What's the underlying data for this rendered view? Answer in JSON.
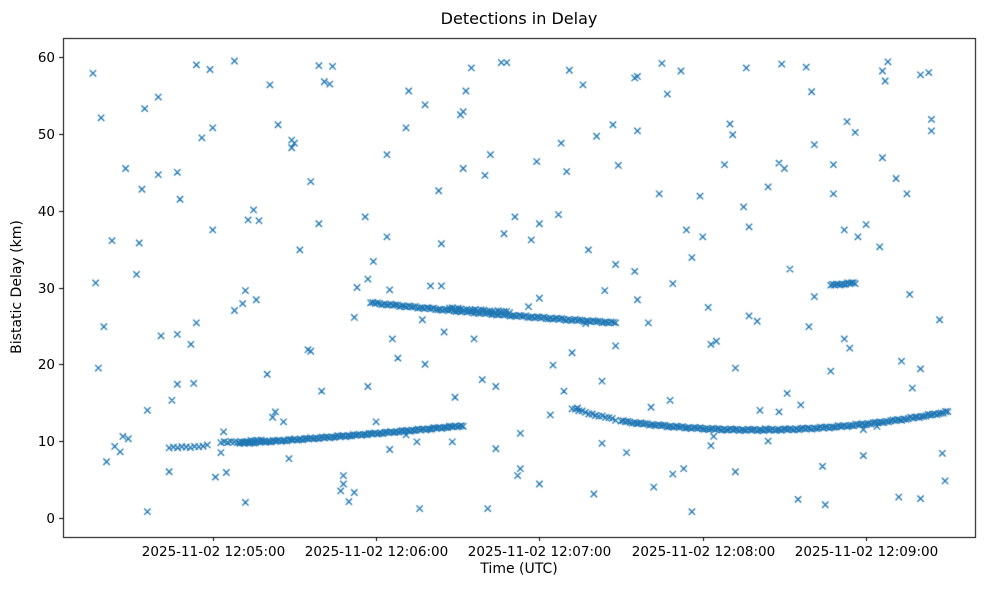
{
  "chart_data": {
    "type": "scatter",
    "title": "Detections in Delay",
    "xlabel": "Time (UTC)",
    "ylabel": "Bistatic Delay (km)",
    "marker": "x",
    "marker_color": "#1f77b4",
    "x_unit": "seconds after 2025-11-02 12:04:00 UTC",
    "xlim": [
      5,
      340
    ],
    "ylim": [
      -2.5,
      62.5
    ],
    "grid": false,
    "x_ticks": [
      {
        "t": 60,
        "label": "2025-11-02 12:05:00"
      },
      {
        "t": 120,
        "label": "2025-11-02 12:06:00"
      },
      {
        "t": 180,
        "label": "2025-11-02 12:07:00"
      },
      {
        "t": 240,
        "label": "2025-11-02 12:08:00"
      },
      {
        "t": 300,
        "label": "2025-11-02 12:09:00"
      }
    ],
    "y_ticks": [
      0,
      10,
      20,
      30,
      40,
      50,
      60
    ],
    "background_points": [
      16,
      57.9,
      20,
      24.9,
      24,
      9.3,
      28,
      45.5,
      32,
      31.7,
      36,
      14.0,
      40,
      54.8,
      44,
      6.0,
      48,
      41.5,
      52,
      22.6,
      56,
      49.5,
      60,
      37.5,
      64,
      11.2,
      68,
      59.5,
      72,
      2.0,
      76,
      28.4,
      80,
      18.7,
      84,
      51.2,
      88,
      7.7,
      92,
      34.9,
      96,
      43.8,
      100,
      16.5,
      104,
      58.8,
      108,
      4.4,
      112,
      26.1,
      116,
      39.2,
      120,
      12.5,
      124,
      47.3,
      128,
      20.8,
      132,
      55.6,
      136,
      1.2,
      140,
      30.2,
      144,
      35.7,
      148,
      9.9,
      152,
      52.9,
      156,
      23.3,
      160,
      44.6,
      164,
      17.1,
      168,
      59.3,
      172,
      5.5,
      176,
      27.5,
      180,
      38.3,
      184,
      13.4,
      188,
      48.8,
      192,
      21.5,
      196,
      56.4,
      200,
      3.1,
      204,
      29.6,
      208,
      33.0,
      212,
      8.5,
      216,
      50.4,
      220,
      25.4,
      224,
      42.2,
      228,
      15.3,
      232,
      58.2,
      236,
      0.8,
      240,
      36.6,
      244,
      10.6,
      248,
      46.0,
      252,
      19.5,
      256,
      58.6,
      260,
      25.6,
      264,
      10.0,
      268,
      46.2,
      272,
      32.4,
      276,
      14.7,
      280,
      55.5,
      284,
      6.7,
      288,
      42.2,
      292,
      23.3,
      296,
      50.2,
      300,
      38.2,
      304,
      11.9,
      308,
      59.4,
      312,
      2.7,
      316,
      29.1,
      320,
      19.4,
      324,
      51.9,
      328,
      8.4,
      18,
      19.5,
      27,
      10.6,
      36,
      0.8,
      45,
      15.3,
      54,
      25.4,
      63,
      8.5,
      72,
      29.6,
      81,
      56.4,
      90,
      48.8,
      99,
      38.3,
      108,
      5.5,
      117,
      17.1,
      126,
      23.3,
      135,
      9.9,
      144,
      30.2,
      153,
      55.6,
      162,
      47.3,
      171,
      39.2,
      180,
      4.4,
      189,
      16.5,
      198,
      34.9,
      207,
      51.2,
      216,
      28.4,
      225,
      59.2,
      234,
      37.5,
      243,
      22.6,
      252,
      6.0,
      261,
      14.0,
      270,
      45.5,
      279,
      24.9,
      288,
      46.0,
      297,
      36.6,
      306,
      58.2,
      315,
      42.2,
      324,
      50.4,
      21,
      7.3,
      34,
      42.8,
      47,
      23.9,
      60,
      50.8,
      73,
      38.8,
      86,
      12.5,
      99,
      58.9,
      112,
      3.3,
      125,
      29.7,
      138,
      20.0,
      151,
      52.5,
      164,
      9.0,
      177,
      36.2,
      190,
      45.1,
      203,
      17.8,
      216,
      57.5,
      229,
      5.7,
      242,
      27.4,
      255,
      40.5,
      268,
      13.8,
      281,
      48.6,
      294,
      22.1,
      307,
      56.9,
      320,
      2.5,
      17,
      30.6,
      23,
      36.1,
      29,
      10.3,
      35,
      53.3,
      41,
      23.7,
      47,
      45.0,
      53,
      17.5,
      59,
      58.4,
      65,
      5.9,
      71,
      27.9,
      77,
      38.7,
      83,
      13.8,
      89,
      49.2,
      95,
      21.9,
      101,
      56.8,
      107,
      3.5,
      113,
      30.0,
      119,
      33.4,
      125,
      8.9,
      131,
      50.8,
      137,
      25.8,
      143,
      42.6,
      149,
      15.7,
      155,
      58.6,
      161,
      1.2,
      167,
      37.0,
      173,
      11.0,
      179,
      46.4,
      185,
      19.9,
      191,
      58.3,
      197,
      25.3,
      203,
      9.7,
      209,
      45.9,
      215,
      32.1,
      221,
      14.4,
      227,
      55.2,
      233,
      6.4,
      239,
      41.9,
      245,
      23.0,
      251,
      49.9,
      257,
      37.9,
      263,
      11.6,
      269,
      59.1,
      275,
      2.4,
      281,
      28.8,
      287,
      19.1,
      293,
      51.6,
      299,
      8.1,
      305,
      35.3,
      311,
      44.2,
      317,
      16.9,
      323,
      58.0,
      329,
      4.8,
      19,
      52.1,
      26,
      8.6,
      33,
      35.8,
      40,
      44.7,
      47,
      17.4,
      54,
      59.0,
      61,
      5.3,
      68,
      27.0,
      75,
      40.1,
      82,
      13.1,
      89,
      48.2,
      96,
      21.7,
      103,
      56.5,
      110,
      2.1,
      117,
      31.1,
      124,
      36.6,
      131,
      10.8,
      138,
      53.8,
      145,
      24.2,
      152,
      45.5,
      159,
      18.0,
      166,
      59.3,
      173,
      6.4,
      180,
      28.6,
      187,
      39.5,
      194,
      14.3,
      201,
      49.7,
      208,
      22.4,
      215,
      57.3,
      222,
      4.0,
      229,
      30.5,
      236,
      33.9,
      243,
      9.4,
      250,
      51.3,
      257,
      26.3,
      264,
      43.1,
      271,
      16.2,
      278,
      58.7,
      285,
      1.7,
      292,
      37.5,
      299,
      11.5,
      306,
      46.9,
      313,
      20.4,
      320,
      57.7,
      327,
      25.8
    ],
    "tracks": [
      {
        "name": "low-early-cluster",
        "t0": 44,
        "t1": 58,
        "y": [
          9.1,
          9.2,
          9.4
        ],
        "n": 10
      },
      {
        "name": "low-rising-lead",
        "t0": 63,
        "t1": 79,
        "y": [
          9.8,
          9.9,
          10.1
        ],
        "n": 14
      },
      {
        "name": "low-rising-track",
        "t0": 70,
        "t1": 152,
        "y": [
          9.7,
          10.6,
          12.0
        ],
        "n": 115
      },
      {
        "name": "mid-descending-track",
        "t0": 118,
        "t1": 208,
        "y": [
          28.0,
          26.4,
          25.4
        ],
        "n": 110
      },
      {
        "name": "mid-short-track",
        "t0": 147,
        "t1": 169,
        "y": [
          27.3,
          27.0,
          26.8
        ],
        "n": 22
      },
      {
        "name": "low-u-lead",
        "t0": 192,
        "t1": 208,
        "y": [
          14.2,
          13.4,
          12.8
        ],
        "n": 14
      },
      {
        "name": "low-u-track",
        "t0": 210,
        "t1": 330,
        "y": [
          12.6,
          9.8,
          13.8
        ],
        "n": 150
      },
      {
        "name": "cluster-30km",
        "t0": 287,
        "t1": 296,
        "y": [
          30.3,
          30.45,
          30.6
        ],
        "n": 14
      }
    ]
  }
}
